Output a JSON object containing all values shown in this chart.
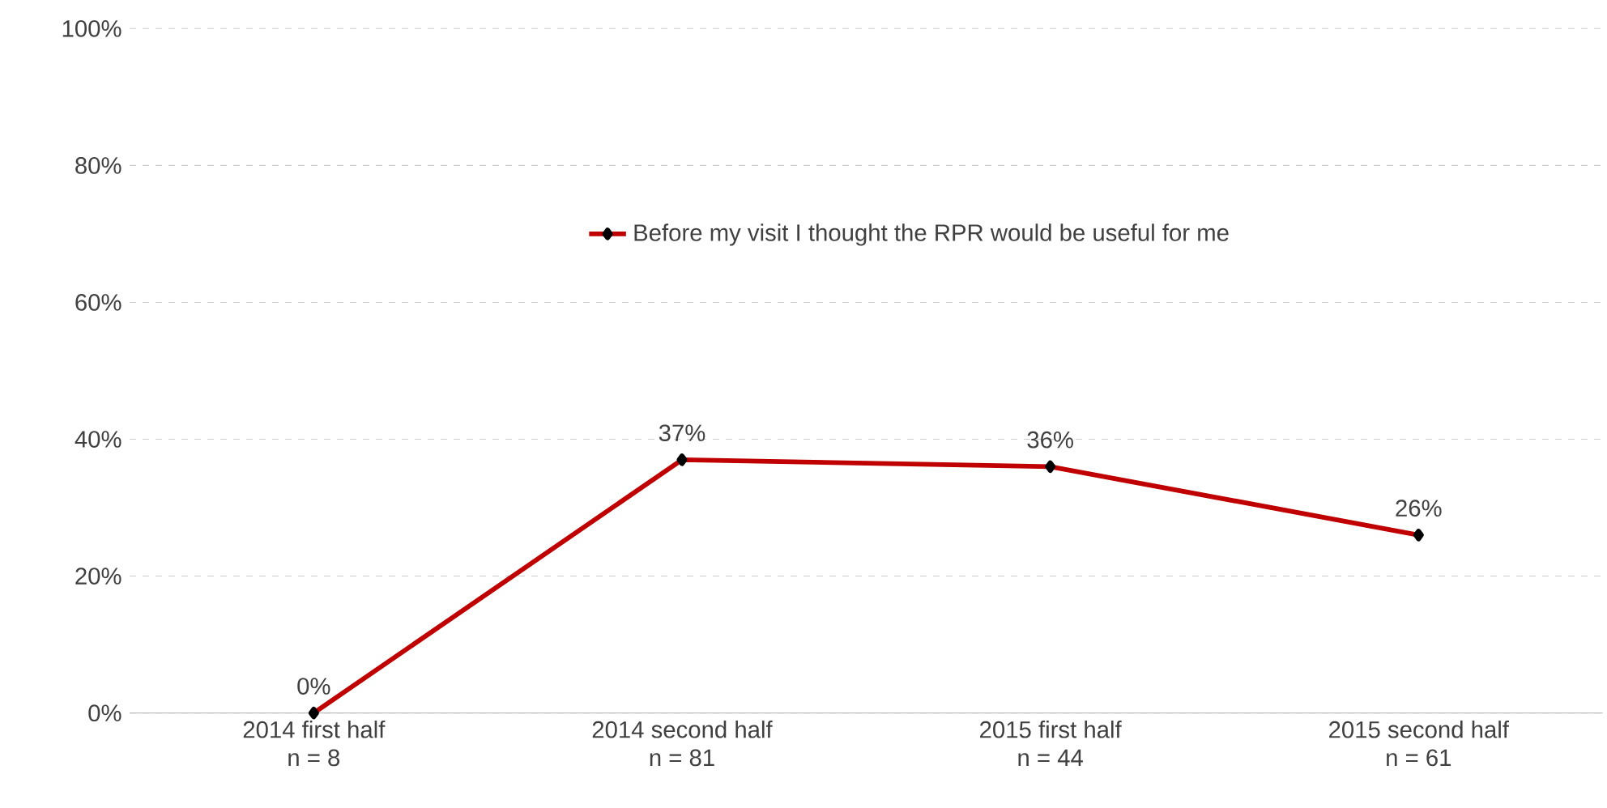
{
  "chart_data": {
    "type": "line",
    "categories": [
      "2014 first half",
      "2014 second half",
      "2015 first half",
      "2015 second half"
    ],
    "annotations": [
      "n = 8",
      "n = 81",
      "n = 44",
      "n = 61"
    ],
    "series": [
      {
        "name": "Before my visit I thought the RPR would be useful for me",
        "color": "#c00000",
        "values": [
          0,
          37,
          36,
          26
        ],
        "value_labels": [
          "0%",
          "37%",
          "36%",
          "26%"
        ]
      }
    ],
    "ylim": [
      0,
      100
    ],
    "yticks": [
      {
        "value": 0,
        "label": "0%"
      },
      {
        "value": 20,
        "label": "20%"
      },
      {
        "value": 40,
        "label": "40%"
      },
      {
        "value": 60,
        "label": "60%"
      },
      {
        "value": 80,
        "label": "80%"
      },
      {
        "value": 100,
        "label": "100%"
      }
    ],
    "grid": "y",
    "legend": "top",
    "marker": "diamond",
    "line_style": "solid"
  }
}
